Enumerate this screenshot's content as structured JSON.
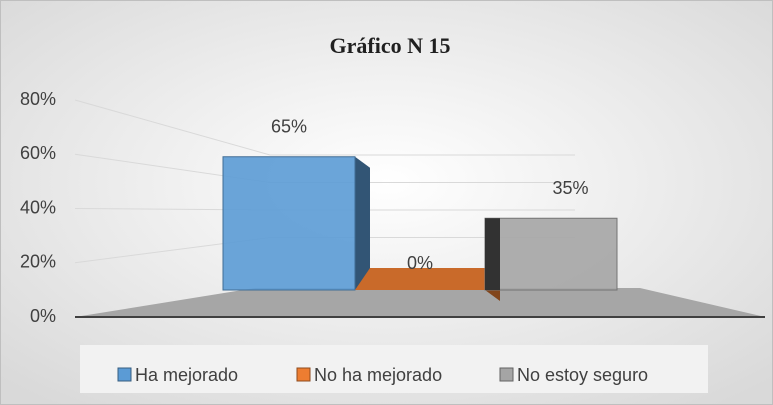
{
  "chart_data": {
    "type": "bar3d",
    "title": "Gráfico N 15",
    "categories": [
      "Ha mejorado",
      "No ha mejorado",
      "No estoy seguro"
    ],
    "values": [
      65,
      0,
      35
    ],
    "value_labels": [
      "65%",
      "0%",
      "35%"
    ],
    "colors": [
      "#5b9bd5",
      "#ed7d31",
      "#a5a5a5"
    ],
    "ylim": [
      0,
      80
    ],
    "yticks": [
      {
        "value": 0,
        "label": "0%"
      },
      {
        "value": 20,
        "label": "20%"
      },
      {
        "value": 40,
        "label": "40%"
      },
      {
        "value": 60,
        "label": "60%"
      },
      {
        "value": 80,
        "label": "80%"
      }
    ],
    "grid": true,
    "legend": "bottom"
  }
}
